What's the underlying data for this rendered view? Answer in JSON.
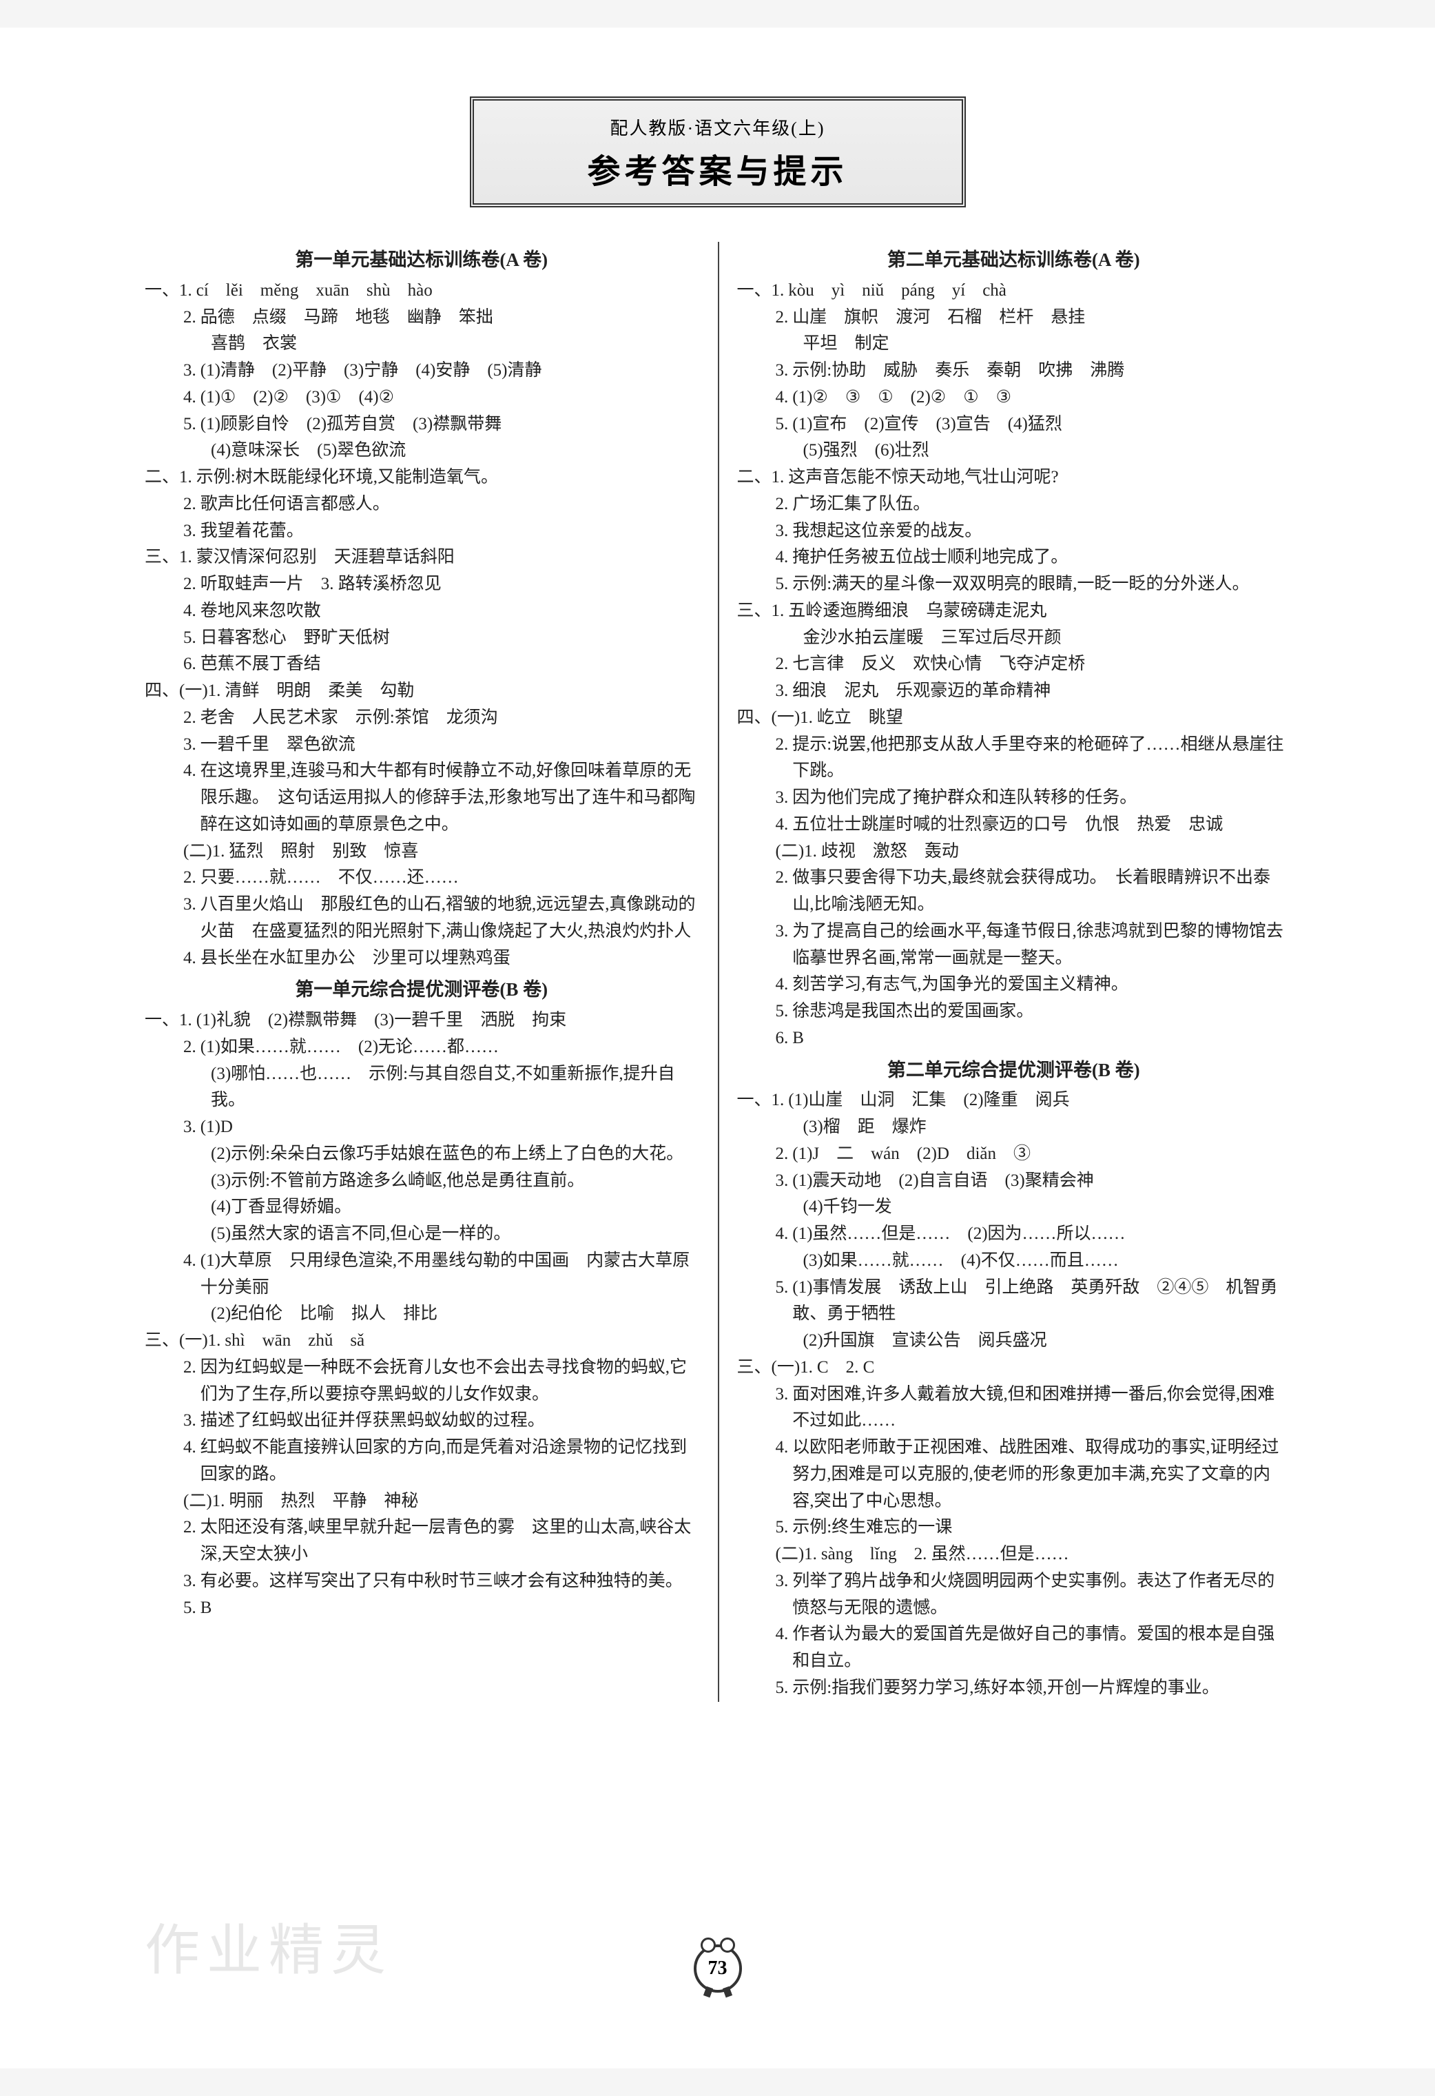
{
  "header": {
    "subtitle": "配人教版·语文六年级(上)",
    "title": "参考答案与提示"
  },
  "page_number": "73",
  "watermark": "作业精灵",
  "left": {
    "s1": {
      "title": "第一单元基础达标训练卷(A 卷)",
      "i1_1": "cí　lěi　měng　xuān　shù　hào",
      "i1_2": "品德　点缀　马蹄　地毯　幽静　笨拙",
      "i1_2b": "喜鹊　衣裳",
      "i1_3": "(1)清静　(2)平静　(3)宁静　(4)安静　(5)清静",
      "i1_4": "(1)①　(2)②　(3)①　(4)②",
      "i1_5": "(1)顾影自怜　(2)孤芳自赏　(3)襟飘带舞",
      "i1_5b": "(4)意味深长　(5)翠色欲流",
      "i2_1": "示例:树木既能绿化环境,又能制造氧气。",
      "i2_2": "歌声比任何语言都感人。",
      "i2_3": "我望着花蕾。",
      "i3_1": "蒙汉情深何忍别　天涯碧草话斜阳",
      "i3_2": "听取蛙声一片　3. 路转溪桥忽见",
      "i3_4": "卷地风来忽吹散",
      "i3_5": "日暮客愁心　野旷天低树",
      "i3_6": "芭蕉不展丁香结",
      "i4a_1": "清鲜　明朗　柔美　勾勒",
      "i4a_2": "老舍　人民艺术家　示例:茶馆　龙须沟",
      "i4a_3": "一碧千里　翠色欲流",
      "i4a_4": "在这境界里,连骏马和大牛都有时候静立不动,好像回味着草原的无限乐趣。　这句话运用拟人的修辞手法,形象地写出了连牛和马都陶醉在这如诗如画的草原景色之中。",
      "i4b_1": "猛烈　照射　别致　惊喜",
      "i4b_2": "只要……就……　不仅……还……",
      "i4b_3": "八百里火焰山　那殷红色的山石,褶皱的地貌,远远望去,真像跳动的火苗　在盛夏猛烈的阳光照射下,满山像烧起了大火,热浪灼灼扑人",
      "i4b_4": "县长坐在水缸里办公　沙里可以埋熟鸡蛋"
    },
    "s2": {
      "title": "第一单元综合提优测评卷(B 卷)",
      "i1_1": "(1)礼貌　(2)襟飘带舞　(3)一碧千里　洒脱　拘束",
      "i1_2": "(1)如果……就……　(2)无论……都……",
      "i1_2b": "(3)哪怕……也……　示例:与其自怨自艾,不如重新振作,提升自我。",
      "i1_3": "(1)D",
      "i1_3b": "(2)示例:朵朵白云像巧手姑娘在蓝色的布上绣上了白色的大花。",
      "i1_3c": "(3)示例:不管前方路途多么崎岖,他总是勇往直前。",
      "i1_3d": "(4)丁香显得娇媚。",
      "i1_3e": "(5)虽然大家的语言不同,但心是一样的。",
      "i1_4": "(1)大草原　只用绿色渲染,不用墨线勾勒的中国画　内蒙古大草原十分美丽",
      "i1_4b": "(2)纪伯伦　比喻　拟人　排比",
      "i3a_1": "shì　wān　zhǔ　sǎ",
      "i3a_2": "因为红蚂蚁是一种既不会抚育儿女也不会出去寻找食物的蚂蚁,它们为了生存,所以要掠夺黑蚂蚁的儿女作奴隶。",
      "i3a_3": "描述了红蚂蚁出征并俘获黑蚂蚁幼蚁的过程。",
      "i3a_4": "红蚂蚁不能直接辨认回家的方向,而是凭着对沿途景物的记忆找到回家的路。",
      "i3b_1": "明丽　热烈　平静　神秘",
      "i3b_2": "太阳还没有落,峡里早就升起一层青色的雾　这里的山太高,峡谷太深,天空太狭小",
      "i3b_3": "有必要。这样写突出了只有中秋时节三峡才会有这种独特的美。",
      "i3b_5": "B"
    }
  },
  "right": {
    "s3": {
      "title": "第二单元基础达标训练卷(A 卷)",
      "i1_1": "kòu　yì　niǔ　páng　yí　chà",
      "i1_2": "山崖　旗帜　渡河　石榴　栏杆　悬挂",
      "i1_2b": "平坦　制定",
      "i1_3": "示例:协助　威胁　奏乐　秦朝　吹拂　沸腾",
      "i1_4": "(1)②　③　①　(2)②　①　③",
      "i1_5": "(1)宣布　(2)宣传　(3)宣告　(4)猛烈",
      "i1_5b": "(5)强烈　(6)壮烈",
      "i2_1": "这声音怎能不惊天动地,气壮山河呢?",
      "i2_2": "广场汇集了队伍。",
      "i2_3": "我想起这位亲爱的战友。",
      "i2_4": "掩护任务被五位战士顺利地完成了。",
      "i2_5": "示例:满天的星斗像一双双明亮的眼睛,一眨一眨的分外迷人。",
      "i3_1": "五岭逶迤腾细浪　乌蒙磅礴走泥丸",
      "i3_1b": "金沙水拍云崖暖　三军过后尽开颜",
      "i3_2": "七言律　反义　欢快心情　飞夺泸定桥",
      "i3_3": "细浪　泥丸　乐观豪迈的革命精神",
      "i4a_1": "屹立　眺望",
      "i4a_2": "提示:说罢,他把那支从敌人手里夺来的枪砸碎了……相继从悬崖往下跳。",
      "i4a_3": "因为他们完成了掩护群众和连队转移的任务。",
      "i4a_4": "五位壮士跳崖时喊的壮烈豪迈的口号　仇恨　热爱　忠诚",
      "i4b_1": "歧视　激怒　轰动",
      "i4b_2": "做事只要舍得下功夫,最终就会获得成功。　长着眼睛辨识不出泰山,比喻浅陋无知。",
      "i4b_3": "为了提高自己的绘画水平,每逢节假日,徐悲鸿就到巴黎的博物馆去临摹世界名画,常常一画就是一整天。",
      "i4b_4": "刻苦学习,有志气,为国争光的爱国主义精神。",
      "i4b_5": "徐悲鸿是我国杰出的爱国画家。",
      "i4b_6": "B"
    },
    "s4": {
      "title": "第二单元综合提优测评卷(B 卷)",
      "i1_1": "(1)山崖　山洞　汇集　(2)隆重　阅兵",
      "i1_1b": "(3)榴　距　爆炸",
      "i1_2": "(1)J　二　wán　(2)D　diǎn　③",
      "i1_3": "(1)震天动地　(2)自言自语　(3)聚精会神",
      "i1_3b": "(4)千钧一发",
      "i1_4": "(1)虽然……但是……　(2)因为……所以……",
      "i1_4b": "(3)如果……就……　(4)不仅……而且……",
      "i1_5": "(1)事情发展　诱敌上山　引上绝路　英勇歼敌　②④⑤　机智勇敢、勇于牺牲",
      "i1_5b": "(2)升国旗　宣读公告　阅兵盛况",
      "i3a_1": "C　2. C",
      "i3a_3": "面对困难,许多人戴着放大镜,但和困难拼搏一番后,你会觉得,困难不过如此……",
      "i3a_4": "以欧阳老师敢于正视困难、战胜困难、取得成功的事实,证明经过努力,困难是可以克服的,使老师的形象更加丰满,充实了文章的内容,突出了中心思想。",
      "i3a_5": "示例:终生难忘的一课",
      "i3b_1": "sàng　lǐng　2. 虽然……但是……",
      "i3b_3": "列举了鸦片战争和火烧圆明园两个史实事例。表达了作者无尽的愤怒与无限的遗憾。",
      "i3b_4": "作者认为最大的爱国首先是做好自己的事情。爱国的根本是自强和自立。",
      "i3b_5": "示例:指我们要努力学习,练好本领,开创一片辉煌的事业。"
    }
  }
}
